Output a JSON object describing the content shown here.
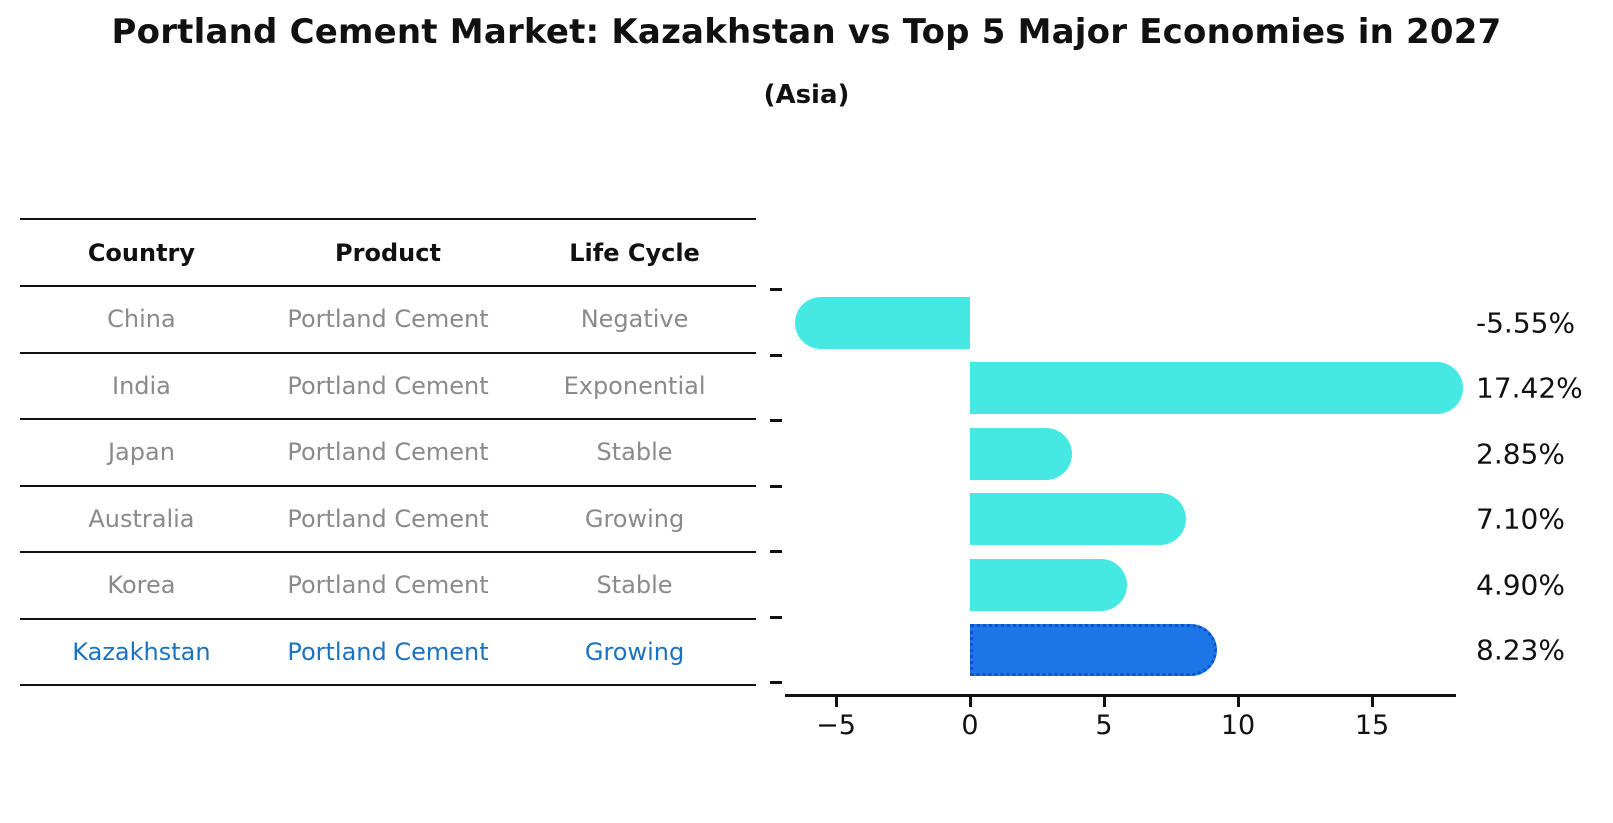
{
  "title": "Portland Cement Market: Kazakhstan vs Top 5 Major Economies in 2027",
  "subtitle": "(Asia)",
  "table": {
    "headers": [
      "Country",
      "Product",
      "Life Cycle"
    ],
    "rows": [
      {
        "country": "China",
        "product": "Portland Cement",
        "life_cycle": "Negative",
        "highlight": false
      },
      {
        "country": "India",
        "product": "Portland Cement",
        "life_cycle": "Exponential",
        "highlight": false
      },
      {
        "country": "Japan",
        "product": "Portland Cement",
        "life_cycle": "Stable",
        "highlight": false
      },
      {
        "country": "Australia",
        "product": "Portland Cement",
        "life_cycle": "Growing",
        "highlight": false
      },
      {
        "country": "Korea",
        "product": "Portland Cement",
        "life_cycle": "Stable",
        "highlight": false
      },
      {
        "country": "Kazakhstan",
        "product": "Portland Cement",
        "life_cycle": "Growing",
        "highlight": true
      }
    ]
  },
  "chart_data": {
    "type": "bar",
    "orientation": "horizontal",
    "categories": [
      "China",
      "India",
      "Japan",
      "Australia",
      "Korea",
      "Kazakhstan"
    ],
    "values": [
      -5.55,
      17.42,
      2.85,
      7.1,
      4.9,
      8.23
    ],
    "value_labels": [
      "-5.55%",
      "17.42%",
      "2.85%",
      "7.10%",
      "4.90%",
      "8.23%"
    ],
    "x_ticks": [
      -5,
      0,
      5,
      10,
      15
    ],
    "x_tick_labels": [
      "−5",
      "0",
      "5",
      "10",
      "15"
    ],
    "xlim": [
      -7,
      18.2
    ],
    "grid": false,
    "legend": "none",
    "bar_color": "#45E8E3",
    "highlight_color": "#1D76E8",
    "highlight_index": 5
  },
  "colors": {
    "bar_cyan": "#45E8E3",
    "bar_blue": "#1D76E8",
    "highlight_text": "#1A73C2",
    "table_text": "#8A8A8A",
    "line": "#111111"
  }
}
